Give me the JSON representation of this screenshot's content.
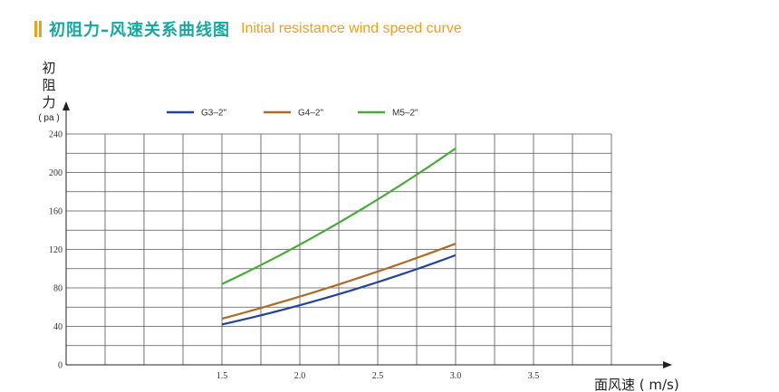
{
  "header": {
    "title_cn": "初阻力–风速关系曲线图",
    "title_en": "Initial resistance wind speed curve",
    "accent_color": "#f0a020",
    "title_color": "#15a8a0"
  },
  "chart_data": {
    "type": "line",
    "ylabel_chars": [
      "初",
      "阻",
      "力"
    ],
    "yunit": "( pa )",
    "xlabel": "面风速 ( m/s)",
    "xlim": [
      0.5,
      4.0
    ],
    "ylim": [
      0,
      240
    ],
    "grid": true,
    "legend_position": "top",
    "x_ticks": [
      "1.5",
      "2.0",
      "2.5",
      "3.0",
      "3.5"
    ],
    "y_ticks": [
      "0",
      "40",
      "80",
      "120",
      "160",
      "200",
      "240"
    ],
    "series": [
      {
        "name": "G3–2\"",
        "color": "#22449a",
        "x": [
          1.5,
          2.0,
          2.5,
          3.0
        ],
        "y": [
          42,
          62,
          86,
          114
        ]
      },
      {
        "name": "G4–2\"",
        "color": "#b06a25",
        "x": [
          1.5,
          2.0,
          2.5,
          3.0
        ],
        "y": [
          48,
          71,
          97,
          126
        ]
      },
      {
        "name": "M5–2\"",
        "color": "#4aaa3c",
        "x": [
          1.5,
          2.0,
          2.5,
          3.0
        ],
        "y": [
          84,
          125,
          172,
          225
        ]
      }
    ]
  }
}
